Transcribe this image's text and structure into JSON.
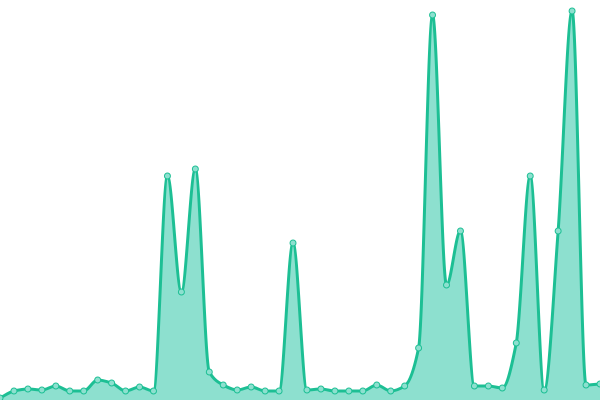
{
  "chart_data": {
    "type": "area",
    "title": "",
    "xlabel": "",
    "ylabel": "",
    "x": [
      0,
      1,
      2,
      3,
      4,
      5,
      6,
      7,
      8,
      9,
      10,
      11,
      12,
      13,
      14,
      15,
      16,
      17,
      18,
      19,
      20,
      21,
      22,
      23,
      24,
      25,
      26,
      27,
      28,
      29,
      30,
      31,
      32,
      33,
      34,
      35,
      36,
      37,
      38,
      39,
      40,
      41,
      42,
      43
    ],
    "values": [
      2,
      9,
      11,
      10,
      14,
      9,
      9,
      20,
      17,
      9,
      13,
      9,
      224,
      108,
      231,
      28,
      15,
      10,
      13,
      9,
      9,
      157,
      10,
      11,
      9,
      9,
      9,
      15,
      9,
      14,
      52,
      385,
      115,
      169,
      14,
      14,
      12,
      57,
      224,
      10,
      169,
      389,
      15,
      16
    ],
    "ylim": [
      0,
      400
    ],
    "grid": false,
    "axes_visible": false,
    "smooth": true,
    "colors": {
      "line": "#1dbf94",
      "fill": "#8de0cf",
      "point_fill": "#8de0cf"
    }
  }
}
